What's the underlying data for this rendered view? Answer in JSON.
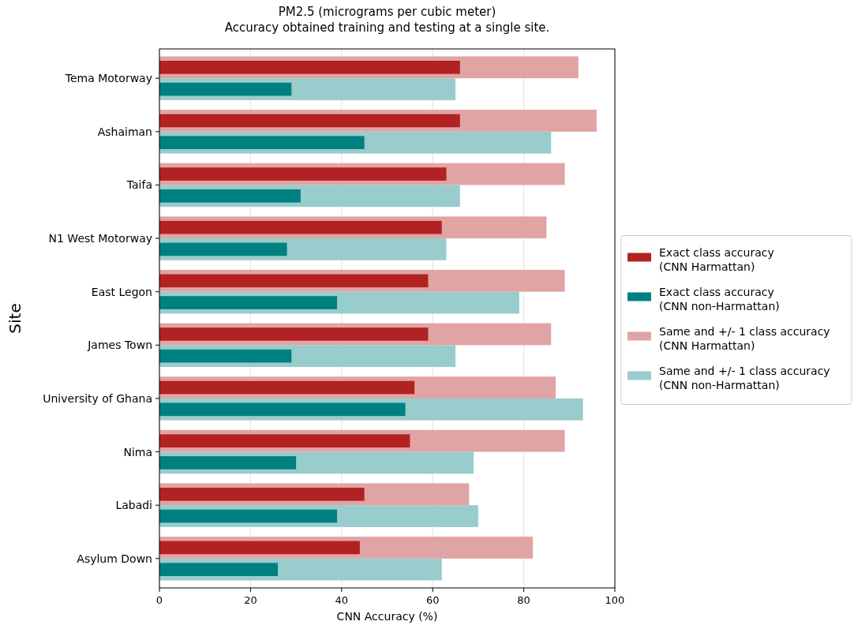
{
  "chart_data": {
    "type": "bar",
    "orientation": "horizontal",
    "title": "PM2.5 (micrograms per cubic meter)\nAccuracy obtained training and testing at a single site.",
    "xlabel": "CNN Accuracy (%)",
    "ylabel": "Site",
    "categories": [
      "Tema Motorway",
      "Ashaiman",
      "Taifa",
      "N1 West Motorway",
      "East Legon",
      "James Town",
      "University of Ghana",
      "Nima",
      "Labadi",
      "Asylum Down"
    ],
    "series": [
      {
        "name": "Exact class accuracy (CNN Harmattan)",
        "color": "#b22222",
        "values": [
          66,
          66,
          63,
          62,
          59,
          59,
          56,
          55,
          45,
          44
        ]
      },
      {
        "name": "Exact class accuracy (CNN non-Harmattan)",
        "color": "#008080",
        "values": [
          29,
          45,
          31,
          28,
          39,
          29,
          54,
          30,
          39,
          26
        ]
      },
      {
        "name": "Same and +/- 1 class accuracy (CNN Harmattan)",
        "color": "#e0a4a4",
        "values": [
          92,
          96,
          89,
          85,
          89,
          86,
          87,
          89,
          68,
          82
        ]
      },
      {
        "name": "Same and +/- 1 class accuracy (CNN non-Harmattan)",
        "color": "#99cccc",
        "values": [
          65,
          86,
          66,
          63,
          79,
          65,
          93,
          69,
          70,
          62
        ]
      }
    ],
    "xlim": [
      0,
      100
    ],
    "xticks": [
      0,
      20,
      40,
      60,
      80,
      100
    ],
    "grid": "x",
    "legend": "right"
  }
}
